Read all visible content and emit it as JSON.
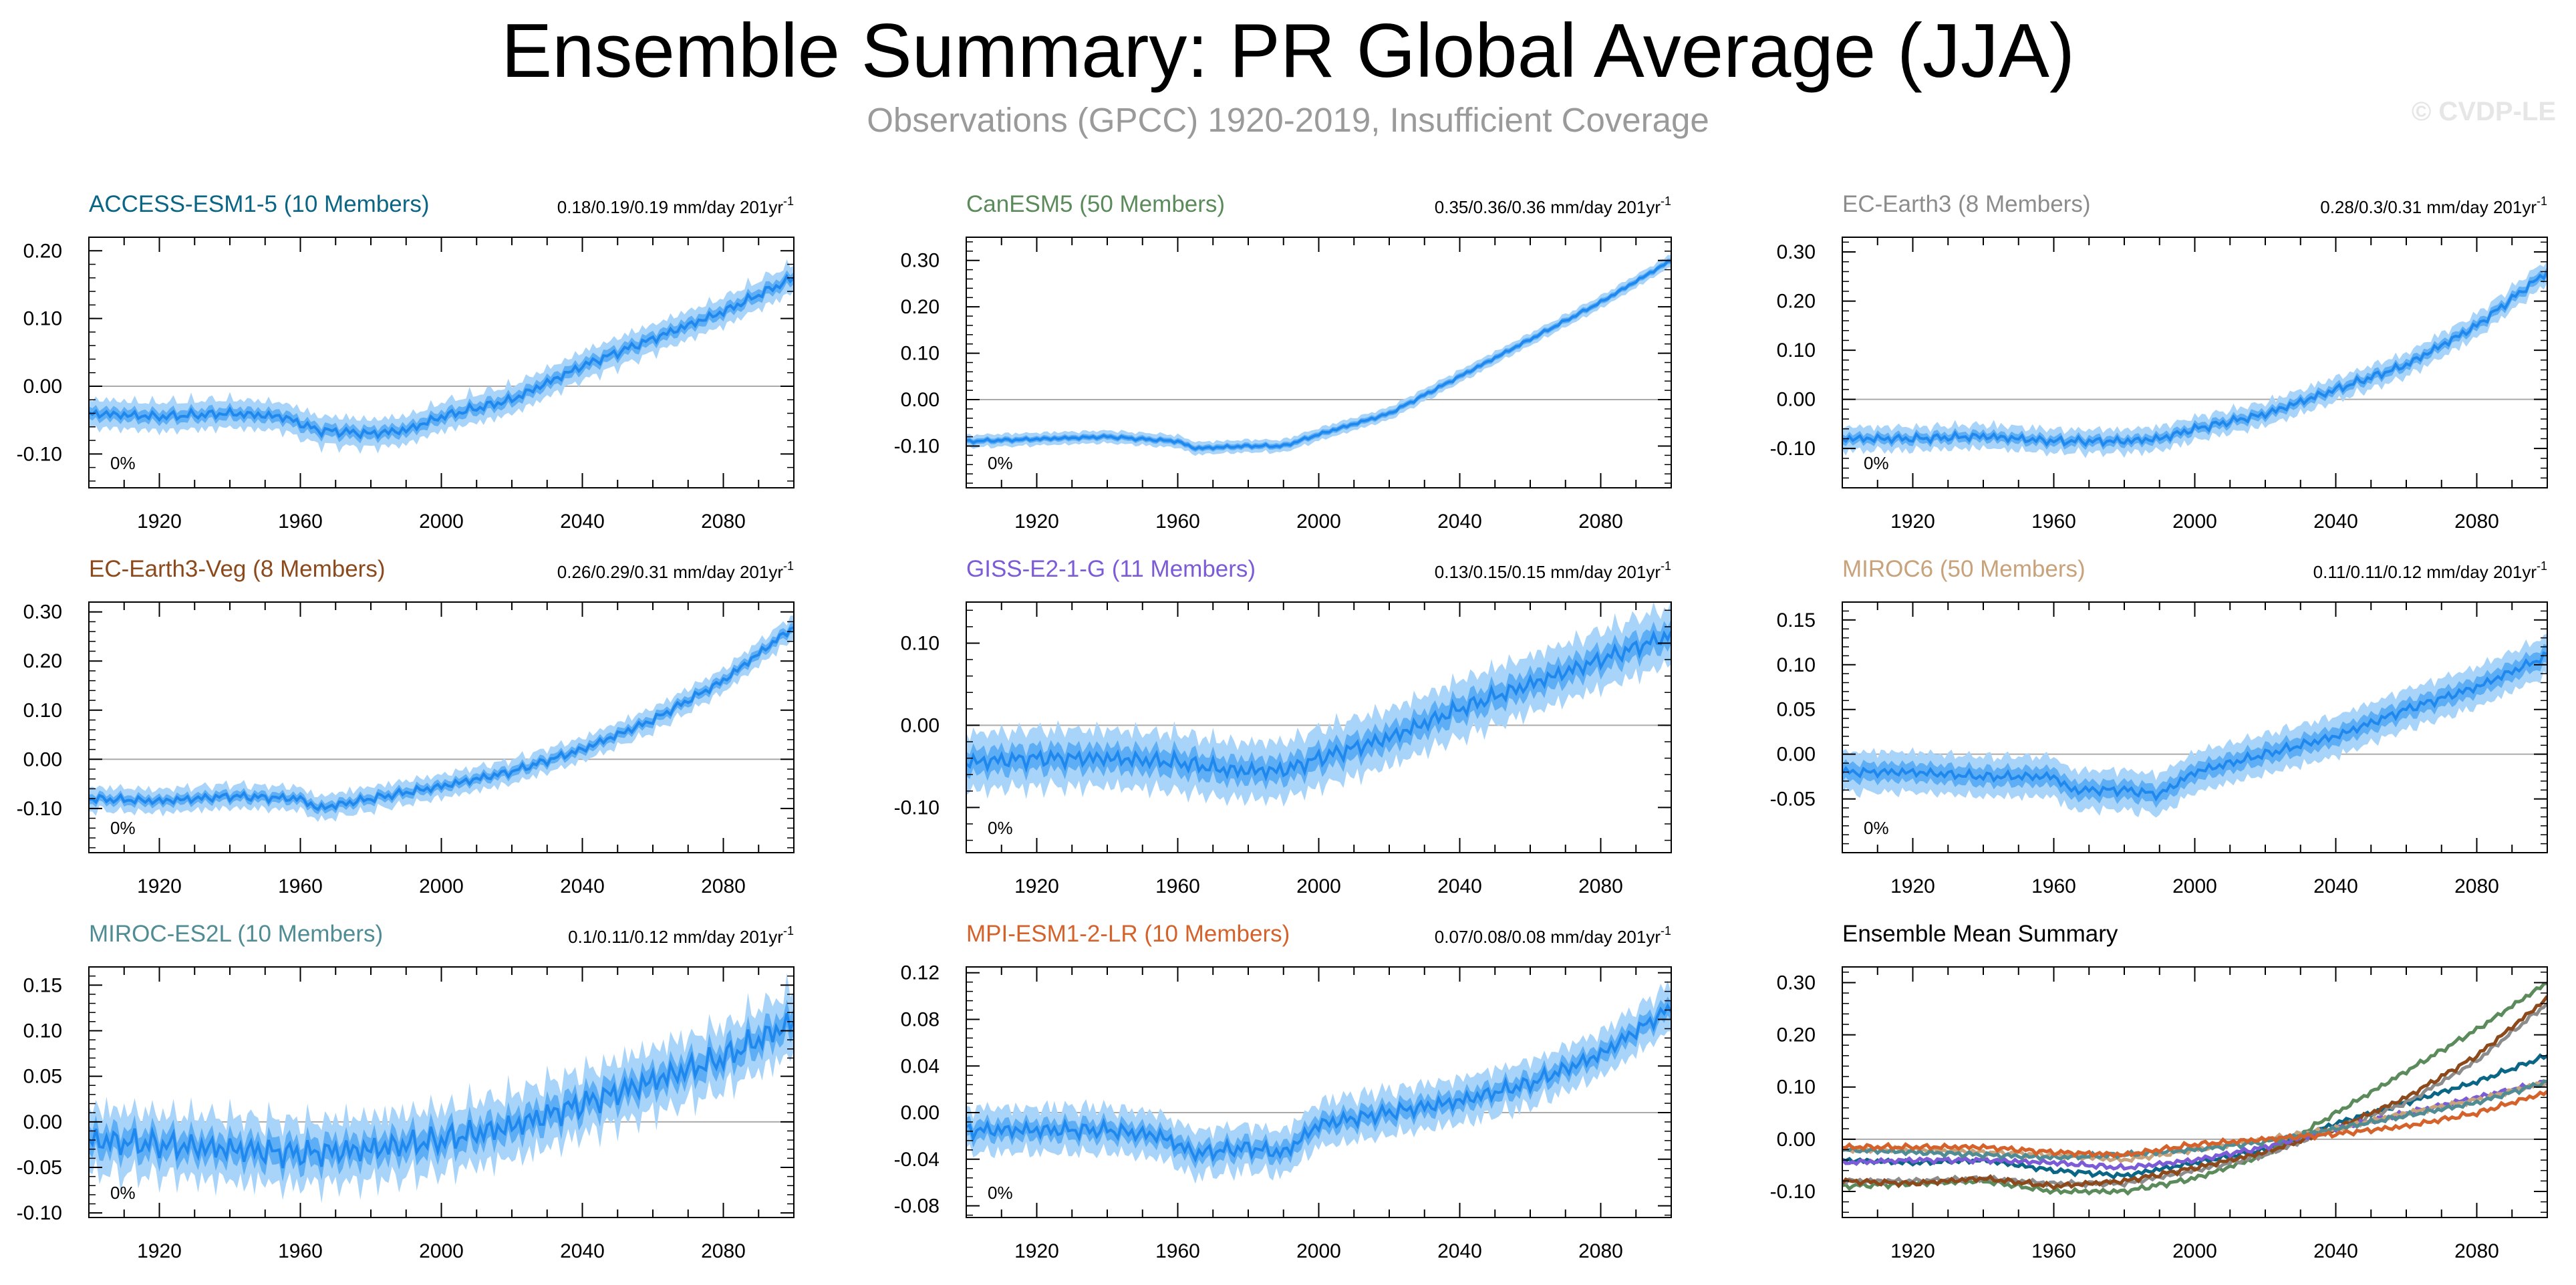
{
  "title": "Ensemble Summary: PR Global Average (JJA)",
  "subtitle": "Observations (GPCC) 1920-2019, Insufficient Coverage",
  "watermark": "© CVDP-LE",
  "colors": {
    "ensemble_mean": "#1e88ee",
    "spread_inner": "#5eaef5",
    "spread_outer": "#a9d4fa",
    "zero_line": "#aaaaaa"
  },
  "chart_data": [
    {
      "type": "area",
      "title": "ACCESS-ESM1-5 (10 Members)",
      "title_color": "#0b6585",
      "trend_label": "0.18/0.19/0.19 mm/day 201yr",
      "trend_unit_sup": "-1",
      "percent_label": "0%",
      "xlim": [
        1900,
        2100
      ],
      "ylim": [
        -0.15,
        0.22
      ],
      "xticks": [
        1920,
        1960,
        2000,
        2040,
        2080
      ],
      "yticks": [
        -0.1,
        0.0,
        0.1,
        0.2
      ],
      "ytick_labels": [
        "-0.10",
        "0.00",
        "0.10",
        "0.20"
      ],
      "x_points": [
        1900,
        1920,
        1940,
        1955,
        1965,
        1980,
        1990,
        2000,
        2020,
        2040,
        2060,
        2080,
        2100
      ],
      "mean": [
        -0.04,
        -0.045,
        -0.04,
        -0.045,
        -0.065,
        -0.07,
        -0.065,
        -0.045,
        -0.02,
        0.03,
        0.07,
        0.11,
        0.16
      ],
      "spread_inner": 0.009,
      "spread_outer": 0.018,
      "variability": 0.008
    },
    {
      "type": "area",
      "title": "CanESM5 (50 Members)",
      "title_color": "#5b8a5b",
      "trend_label": "0.35/0.36/0.36 mm/day 201yr",
      "trend_unit_sup": "-1",
      "percent_label": "0%",
      "xlim": [
        1900,
        2100
      ],
      "ylim": [
        -0.19,
        0.35
      ],
      "xticks": [
        1920,
        1960,
        2000,
        2040,
        2080
      ],
      "yticks": [
        -0.1,
        0.0,
        0.1,
        0.2,
        0.3
      ],
      "ytick_labels": [
        "-0.10",
        "0.00",
        "0.10",
        "0.20",
        "0.30"
      ],
      "x_points": [
        1900,
        1920,
        1940,
        1960,
        1965,
        1980,
        1990,
        2000,
        2020,
        2040,
        2060,
        2080,
        2100
      ],
      "mean": [
        -0.09,
        -0.085,
        -0.08,
        -0.09,
        -0.105,
        -0.1,
        -0.1,
        -0.075,
        -0.03,
        0.05,
        0.13,
        0.21,
        0.3
      ],
      "spread_inner": 0.006,
      "spread_outer": 0.012,
      "variability": 0.004
    },
    {
      "type": "area",
      "title": "EC-Earth3 (8 Members)",
      "title_color": "#8c8c8c",
      "trend_label": "0.28/0.3/0.31 mm/day 201yr",
      "trend_unit_sup": "-1",
      "percent_label": "0%",
      "xlim": [
        1900,
        2100
      ],
      "ylim": [
        -0.18,
        0.33
      ],
      "xticks": [
        1920,
        1960,
        2000,
        2040,
        2080
      ],
      "yticks": [
        -0.1,
        0.0,
        0.1,
        0.2,
        0.3
      ],
      "ytick_labels": [
        "-0.10",
        "0.00",
        "0.10",
        "0.20",
        "0.30"
      ],
      "x_points": [
        1900,
        1920,
        1940,
        1960,
        1980,
        1990,
        2000,
        2020,
        2040,
        2060,
        2080,
        2100
      ],
      "mean": [
        -0.08,
        -0.08,
        -0.075,
        -0.085,
        -0.085,
        -0.08,
        -0.06,
        -0.03,
        0.02,
        0.07,
        0.15,
        0.26
      ],
      "spread_inner": 0.01,
      "spread_outer": 0.02,
      "variability": 0.01
    },
    {
      "type": "area",
      "title": "EC-Earth3-Veg (8 Members)",
      "title_color": "#8c4a1c",
      "trend_label": "0.26/0.29/0.31 mm/day 201yr",
      "trend_unit_sup": "-1",
      "percent_label": "0%",
      "xlim": [
        1900,
        2100
      ],
      "ylim": [
        -0.19,
        0.32
      ],
      "xticks": [
        1920,
        1960,
        2000,
        2040,
        2080
      ],
      "yticks": [
        -0.1,
        0.0,
        0.1,
        0.2,
        0.3
      ],
      "ytick_labels": [
        "-0.10",
        "0.00",
        "0.10",
        "0.20",
        "0.30"
      ],
      "x_points": [
        1900,
        1920,
        1940,
        1960,
        1965,
        1980,
        2000,
        2020,
        2040,
        2060,
        2080,
        2100
      ],
      "mean": [
        -0.08,
        -0.085,
        -0.075,
        -0.08,
        -0.1,
        -0.08,
        -0.055,
        -0.025,
        0.02,
        0.08,
        0.16,
        0.27
      ],
      "spread_inner": 0.01,
      "spread_outer": 0.02,
      "variability": 0.01
    },
    {
      "type": "area",
      "title": "GISS-E2-1-G (11 Members)",
      "title_color": "#7b5cd6",
      "trend_label": "0.13/0.15/0.15 mm/day 201yr",
      "trend_unit_sup": "-1",
      "percent_label": "0%",
      "xlim": [
        1900,
        2100
      ],
      "ylim": [
        -0.155,
        0.15
      ],
      "xticks": [
        1920,
        1960,
        2000,
        2040,
        2080
      ],
      "yticks": [
        -0.1,
        0.0,
        0.1
      ],
      "ytick_labels": [
        "-0.10",
        "0.00",
        "0.10"
      ],
      "x_points": [
        1900,
        1920,
        1940,
        1960,
        1975,
        1990,
        2000,
        2020,
        2040,
        2060,
        2080,
        2100
      ],
      "mean": [
        -0.045,
        -0.04,
        -0.04,
        -0.045,
        -0.055,
        -0.055,
        -0.04,
        -0.015,
        0.02,
        0.05,
        0.08,
        0.11
      ],
      "spread_inner": 0.015,
      "spread_outer": 0.03,
      "variability": 0.012
    },
    {
      "type": "area",
      "title": "MIROC6 (50 Members)",
      "title_color": "#c8a27a",
      "trend_label": "0.11/0.11/0.12 mm/day 201yr",
      "trend_unit_sup": "-1",
      "percent_label": "0%",
      "xlim": [
        1900,
        2100
      ],
      "ylim": [
        -0.11,
        0.17
      ],
      "xticks": [
        1920,
        1960,
        2000,
        2040,
        2080
      ],
      "yticks": [
        -0.05,
        0.0,
        0.05,
        0.1,
        0.15
      ],
      "ytick_labels": [
        "-0.05",
        "0.00",
        "0.05",
        "0.10",
        "0.15"
      ],
      "x_points": [
        1900,
        1920,
        1940,
        1960,
        1965,
        1980,
        1990,
        2000,
        2020,
        2040,
        2060,
        2080,
        2100
      ],
      "mean": [
        -0.02,
        -0.02,
        -0.025,
        -0.025,
        -0.04,
        -0.04,
        -0.045,
        -0.02,
        0.0,
        0.02,
        0.05,
        0.075,
        0.11
      ],
      "spread_inner": 0.01,
      "spread_outer": 0.02,
      "variability": 0.006
    },
    {
      "type": "area",
      "title": "MIROC-ES2L (10 Members)",
      "title_color": "#4f8c93",
      "trend_label": "0.1/0.11/0.12 mm/day 201yr",
      "trend_unit_sup": "-1",
      "percent_label": "0%",
      "xlim": [
        1900,
        2100
      ],
      "ylim": [
        -0.105,
        0.17
      ],
      "xticks": [
        1920,
        1960,
        2000,
        2040,
        2080
      ],
      "yticks": [
        -0.1,
        -0.05,
        0.0,
        0.05,
        0.1,
        0.15
      ],
      "ytick_labels": [
        "-0.10",
        "-0.05",
        "0.00",
        "0.05",
        "0.10",
        "0.15"
      ],
      "x_points": [
        1900,
        1920,
        1940,
        1960,
        1980,
        2000,
        2020,
        2040,
        2060,
        2080,
        2100
      ],
      "mean": [
        -0.02,
        -0.025,
        -0.03,
        -0.035,
        -0.03,
        -0.02,
        -0.005,
        0.02,
        0.045,
        0.07,
        0.11
      ],
      "spread_inner": 0.015,
      "spread_outer": 0.028,
      "variability": 0.018
    },
    {
      "type": "area",
      "title": "MPI-ESM1-2-LR (10 Members)",
      "title_color": "#d4622a",
      "trend_label": "0.07/0.08/0.08 mm/day 201yr",
      "trend_unit_sup": "-1",
      "percent_label": "0%",
      "xlim": [
        1900,
        2100
      ],
      "ylim": [
        -0.09,
        0.125
      ],
      "xticks": [
        1920,
        1960,
        2000,
        2040,
        2080
      ],
      "yticks": [
        -0.08,
        -0.04,
        0.0,
        0.04,
        0.08,
        0.12
      ],
      "ytick_labels": [
        "-0.08",
        "-0.04",
        "0.00",
        "0.04",
        "0.08",
        "0.12"
      ],
      "x_points": [
        1900,
        1920,
        1940,
        1955,
        1965,
        1980,
        1990,
        2000,
        2020,
        2040,
        2060,
        2080,
        2100
      ],
      "mean": [
        -0.015,
        -0.015,
        -0.015,
        -0.02,
        -0.035,
        -0.03,
        -0.035,
        -0.01,
        0.0,
        0.01,
        0.025,
        0.05,
        0.09
      ],
      "spread_inner": 0.008,
      "spread_outer": 0.016,
      "variability": 0.008
    },
    {
      "type": "line",
      "title": "Ensemble Mean Summary",
      "title_color": "#000000",
      "xlim": [
        1900,
        2100
      ],
      "ylim": [
        -0.15,
        0.33
      ],
      "xticks": [
        1920,
        1960,
        2000,
        2040,
        2080
      ],
      "yticks": [
        -0.1,
        0.0,
        0.1,
        0.2,
        0.3
      ],
      "ytick_labels": [
        "-0.10",
        "0.00",
        "0.10",
        "0.20",
        "0.30"
      ],
      "x_points": [
        1900,
        1920,
        1940,
        1960,
        1980,
        2000,
        2020,
        2040,
        2060,
        2080,
        2100
      ],
      "series": [
        {
          "color": "#0b6585",
          "values": [
            -0.04,
            -0.045,
            -0.04,
            -0.06,
            -0.07,
            -0.045,
            -0.02,
            0.03,
            0.07,
            0.11,
            0.16
          ]
        },
        {
          "color": "#5b8a5b",
          "values": [
            -0.09,
            -0.085,
            -0.08,
            -0.1,
            -0.1,
            -0.075,
            -0.03,
            0.05,
            0.13,
            0.21,
            0.3
          ]
        },
        {
          "color": "#8c8c8c",
          "values": [
            -0.08,
            -0.08,
            -0.075,
            -0.085,
            -0.085,
            -0.06,
            -0.03,
            0.02,
            0.07,
            0.15,
            0.26
          ]
        },
        {
          "color": "#8c4a1c",
          "values": [
            -0.08,
            -0.085,
            -0.075,
            -0.09,
            -0.08,
            -0.055,
            -0.025,
            0.02,
            0.08,
            0.16,
            0.27
          ]
        },
        {
          "color": "#7b5cd6",
          "values": [
            -0.045,
            -0.04,
            -0.04,
            -0.045,
            -0.055,
            -0.04,
            -0.015,
            0.02,
            0.05,
            0.08,
            0.11
          ]
        },
        {
          "color": "#c8a27a",
          "values": [
            -0.02,
            -0.02,
            -0.025,
            -0.03,
            -0.04,
            -0.02,
            0.0,
            0.02,
            0.05,
            0.075,
            0.11
          ]
        },
        {
          "color": "#4f8c93",
          "values": [
            -0.02,
            -0.025,
            -0.03,
            -0.035,
            -0.03,
            -0.02,
            -0.005,
            0.02,
            0.045,
            0.07,
            0.11
          ]
        },
        {
          "color": "#d4622a",
          "values": [
            -0.015,
            -0.015,
            -0.015,
            -0.025,
            -0.03,
            -0.01,
            0.0,
            0.01,
            0.025,
            0.05,
            0.09
          ]
        }
      ]
    }
  ]
}
